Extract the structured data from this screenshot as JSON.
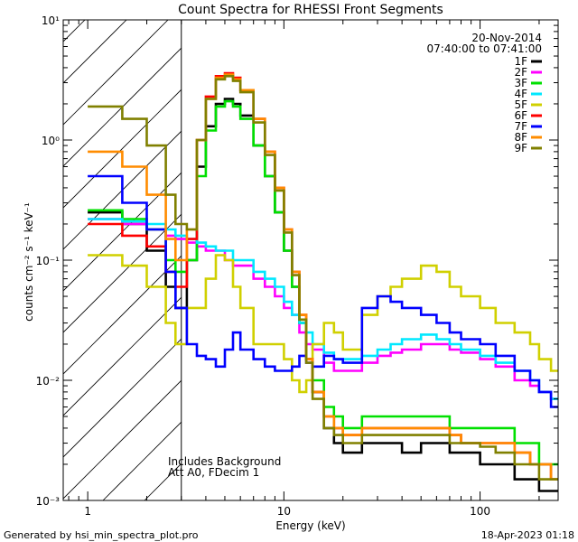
{
  "chart_data": {
    "type": "line",
    "title": "Count Spectra for RHESSI Front Segments",
    "date": "20-Nov-2014",
    "time_range": "07:40:00 to 07:41:00",
    "xlabel": "Energy (keV)",
    "ylabel": "counts cm⁻² s⁻¹ keV⁻¹",
    "xscale": "log",
    "yscale": "log",
    "xlim": [
      0.75,
      250
    ],
    "ylim": [
      0.001,
      10
    ],
    "x_ticks": [
      "1",
      "10",
      "100"
    ],
    "y_ticks": [
      "10⁻³",
      "10⁻²",
      "10⁻¹",
      "10⁰",
      "10¹"
    ],
    "shaded_below_keV": 3,
    "annotations": [
      "Includes Background",
      "Att A0, FDecim 1"
    ],
    "footer_left": "Generated by hsi_min_spectra_plot.pro",
    "footer_right": "18-Apr-2023 01:18",
    "legend_position": "top-right",
    "series": [
      {
        "name": "1F",
        "color": "#000000",
        "x": [
          1,
          1.5,
          2,
          2.5,
          2.8,
          3.2,
          3.6,
          4,
          4.5,
          5,
          5.5,
          6,
          7,
          8,
          9,
          10,
          11,
          12,
          13,
          14,
          16,
          18,
          20,
          25,
          30,
          35,
          40,
          50,
          60,
          70,
          80,
          100,
          120,
          150,
          180,
          200,
          230
        ],
        "values": [
          0.25,
          0.2,
          0.12,
          0.06,
          0.04,
          0.1,
          0.6,
          1.3,
          2.0,
          2.2,
          2.0,
          1.6,
          0.9,
          0.5,
          0.25,
          0.12,
          0.06,
          0.03,
          0.015,
          0.008,
          0.004,
          0.003,
          0.0025,
          0.003,
          0.003,
          0.003,
          0.0025,
          0.003,
          0.003,
          0.0025,
          0.0025,
          0.002,
          0.002,
          0.0015,
          0.0015,
          0.0012,
          0.0012
        ]
      },
      {
        "name": "2F",
        "color": "#FF00FF",
        "x": [
          1,
          1.5,
          2,
          2.5,
          2.8,
          3.2,
          3.6,
          4,
          4.5,
          5,
          5.5,
          6,
          7,
          8,
          9,
          10,
          11,
          12,
          13,
          14,
          16,
          18,
          20,
          25,
          30,
          35,
          40,
          50,
          60,
          70,
          80,
          100,
          120,
          150,
          180,
          200,
          230
        ],
        "values": [
          0.22,
          0.2,
          0.18,
          0.16,
          0.15,
          0.14,
          0.13,
          0.12,
          0.12,
          0.1,
          0.09,
          0.09,
          0.07,
          0.06,
          0.05,
          0.04,
          0.035,
          0.025,
          0.02,
          0.018,
          0.014,
          0.012,
          0.012,
          0.014,
          0.016,
          0.017,
          0.018,
          0.02,
          0.02,
          0.018,
          0.017,
          0.015,
          0.013,
          0.01,
          0.009,
          0.008,
          0.007
        ]
      },
      {
        "name": "3F",
        "color": "#00E000",
        "x": [
          1,
          1.5,
          2,
          2.5,
          2.8,
          3.2,
          3.6,
          4,
          4.5,
          5,
          5.5,
          6,
          7,
          8,
          9,
          10,
          11,
          12,
          13,
          14,
          16,
          18,
          20,
          25,
          30,
          35,
          40,
          50,
          60,
          70,
          80,
          100,
          120,
          150,
          180,
          200,
          230
        ],
        "values": [
          0.26,
          0.22,
          0.18,
          0.1,
          0.08,
          0.1,
          0.5,
          1.2,
          1.9,
          2.1,
          1.9,
          1.5,
          0.9,
          0.5,
          0.25,
          0.12,
          0.06,
          0.03,
          0.015,
          0.01,
          0.006,
          0.005,
          0.004,
          0.005,
          0.005,
          0.005,
          0.005,
          0.005,
          0.005,
          0.004,
          0.004,
          0.004,
          0.004,
          0.003,
          0.003,
          0.002,
          0.002
        ]
      },
      {
        "name": "4F",
        "color": "#00E8FF",
        "x": [
          1,
          1.5,
          2,
          2.5,
          2.8,
          3.2,
          3.6,
          4,
          4.5,
          5,
          5.5,
          6,
          7,
          8,
          9,
          10,
          11,
          12,
          13,
          14,
          16,
          18,
          20,
          25,
          30,
          35,
          40,
          50,
          60,
          70,
          80,
          100,
          120,
          150,
          180,
          200,
          230
        ],
        "values": [
          0.22,
          0.21,
          0.2,
          0.18,
          0.16,
          0.15,
          0.14,
          0.13,
          0.12,
          0.12,
          0.1,
          0.1,
          0.08,
          0.07,
          0.06,
          0.045,
          0.035,
          0.03,
          0.025,
          0.02,
          0.017,
          0.015,
          0.015,
          0.016,
          0.018,
          0.02,
          0.022,
          0.024,
          0.022,
          0.02,
          0.018,
          0.016,
          0.014,
          0.012,
          0.01,
          0.008,
          0.007
        ]
      },
      {
        "name": "5F",
        "color": "#D0D000",
        "x": [
          1,
          1.5,
          2,
          2.5,
          2.8,
          3.2,
          3.6,
          4,
          4.5,
          5,
          5.5,
          6,
          7,
          8,
          9,
          10,
          11,
          12,
          13,
          14,
          16,
          18,
          20,
          25,
          30,
          35,
          40,
          50,
          60,
          70,
          80,
          100,
          120,
          150,
          180,
          200,
          230
        ],
        "values": [
          0.11,
          0.09,
          0.06,
          0.03,
          0.02,
          0.04,
          0.04,
          0.07,
          0.11,
          0.1,
          0.06,
          0.04,
          0.02,
          0.02,
          0.02,
          0.015,
          0.01,
          0.008,
          0.01,
          0.02,
          0.03,
          0.025,
          0.018,
          0.035,
          0.05,
          0.06,
          0.07,
          0.09,
          0.08,
          0.06,
          0.05,
          0.04,
          0.03,
          0.025,
          0.02,
          0.015,
          0.012
        ]
      },
      {
        "name": "6F",
        "color": "#FF0000",
        "x": [
          1,
          1.5,
          2,
          2.5,
          2.8,
          3.2,
          3.6,
          4,
          4.5,
          5,
          5.5,
          6,
          7,
          8,
          9,
          10,
          11,
          12,
          13,
          14,
          16,
          18,
          20,
          25,
          30,
          35,
          40,
          50,
          60,
          70,
          80,
          100,
          120,
          150,
          180,
          200,
          230
        ],
        "values": [
          0.2,
          0.16,
          0.13,
          0.08,
          0.06,
          0.15,
          1.0,
          2.3,
          3.4,
          3.6,
          3.3,
          2.6,
          1.5,
          0.8,
          0.4,
          0.18,
          0.08,
          0.035,
          0.015,
          0.008,
          0.005,
          0.004,
          0.0035,
          0.004,
          0.004,
          0.004,
          0.004,
          0.004,
          0.004,
          0.0035,
          0.003,
          0.003,
          0.003,
          0.0025,
          0.002,
          0.002,
          0.0015
        ]
      },
      {
        "name": "7F",
        "color": "#0000FF",
        "x": [
          1,
          1.5,
          2,
          2.5,
          2.8,
          3.2,
          3.6,
          4,
          4.5,
          5,
          5.5,
          6,
          7,
          8,
          9,
          10,
          11,
          12,
          13,
          14,
          16,
          18,
          20,
          25,
          30,
          35,
          40,
          50,
          60,
          70,
          80,
          100,
          120,
          150,
          180,
          200,
          230
        ],
        "values": [
          0.5,
          0.3,
          0.18,
          0.08,
          0.04,
          0.02,
          0.016,
          0.015,
          0.013,
          0.018,
          0.025,
          0.018,
          0.015,
          0.013,
          0.012,
          0.012,
          0.013,
          0.016,
          0.014,
          0.013,
          0.016,
          0.015,
          0.014,
          0.04,
          0.05,
          0.045,
          0.04,
          0.035,
          0.03,
          0.025,
          0.022,
          0.02,
          0.016,
          0.012,
          0.01,
          0.008,
          0.006
        ]
      },
      {
        "name": "8F",
        "color": "#FF8C00",
        "x": [
          1,
          1.5,
          2,
          2.5,
          2.8,
          3.2,
          3.6,
          4,
          4.5,
          5,
          5.5,
          6,
          7,
          8,
          9,
          10,
          11,
          12,
          13,
          14,
          16,
          18,
          20,
          25,
          30,
          35,
          40,
          50,
          60,
          70,
          80,
          100,
          120,
          150,
          180,
          200,
          230
        ],
        "values": [
          0.8,
          0.6,
          0.35,
          0.15,
          0.1,
          0.18,
          1.0,
          2.2,
          3.3,
          3.5,
          3.2,
          2.6,
          1.5,
          0.8,
          0.4,
          0.18,
          0.08,
          0.035,
          0.015,
          0.008,
          0.005,
          0.004,
          0.0035,
          0.004,
          0.004,
          0.004,
          0.004,
          0.004,
          0.004,
          0.0035,
          0.003,
          0.003,
          0.003,
          0.0025,
          0.002,
          0.002,
          0.0015
        ]
      },
      {
        "name": "9F",
        "color": "#808000",
        "x": [
          1,
          1.5,
          2,
          2.5,
          2.8,
          3.2,
          3.6,
          4,
          4.5,
          5,
          5.5,
          6,
          7,
          8,
          9,
          10,
          11,
          12,
          13,
          14,
          16,
          18,
          20,
          25,
          30,
          35,
          40,
          50,
          60,
          70,
          80,
          100,
          120,
          150,
          180,
          200,
          230
        ],
        "values": [
          1.9,
          1.5,
          0.9,
          0.35,
          0.2,
          0.18,
          1.0,
          2.2,
          3.2,
          3.4,
          3.1,
          2.5,
          1.4,
          0.75,
          0.38,
          0.17,
          0.075,
          0.032,
          0.014,
          0.007,
          0.004,
          0.0035,
          0.003,
          0.0035,
          0.0035,
          0.0035,
          0.0035,
          0.0035,
          0.0035,
          0.003,
          0.003,
          0.0028,
          0.0025,
          0.002,
          0.002,
          0.0015,
          0.0015
        ]
      }
    ]
  }
}
